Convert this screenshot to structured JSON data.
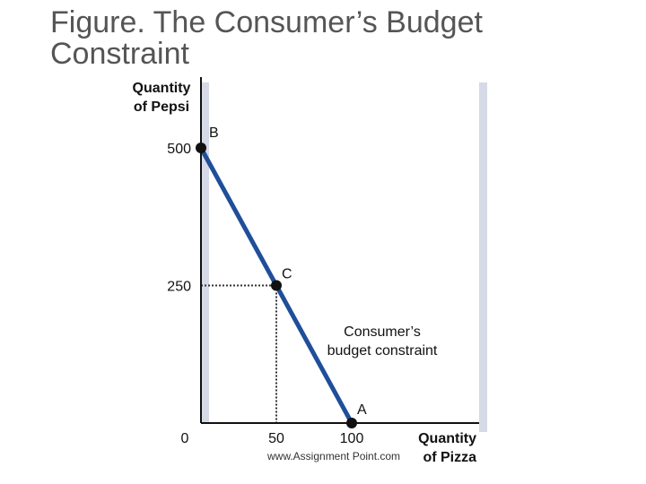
{
  "title": "Figure. The Consumer’s Budget Constraint",
  "watermark": "www.Assignment Point.com",
  "colors": {
    "budget_line": "#1f4e9a",
    "axes": "#111111",
    "dotted": "#333333",
    "points": "#111111",
    "shadow": "#d6d9e6"
  },
  "chart_data": {
    "type": "line",
    "title": "Figure. The Consumer’s Budget Constraint",
    "xlabel": [
      "Quantity",
      "of Pizza"
    ],
    "ylabel": [
      "Quantity",
      "of Pepsi"
    ],
    "xlim": [
      0,
      140
    ],
    "ylim": [
      0,
      540
    ],
    "x_ticks": [
      0,
      50,
      100
    ],
    "y_ticks": [
      250,
      500
    ],
    "grid": false,
    "series": [
      {
        "points": [
          {
            "x": 0,
            "y": 500
          },
          {
            "x": 100,
            "y": 0
          }
        ]
      }
    ],
    "points": [
      {
        "label": "B",
        "x": 0,
        "y": 500
      },
      {
        "label": "C",
        "x": 50,
        "y": 250
      },
      {
        "label": "A",
        "x": 100,
        "y": 0
      }
    ],
    "annotations": [
      {
        "text": [
          "Consumer’s",
          "budget constraint"
        ]
      }
    ]
  }
}
